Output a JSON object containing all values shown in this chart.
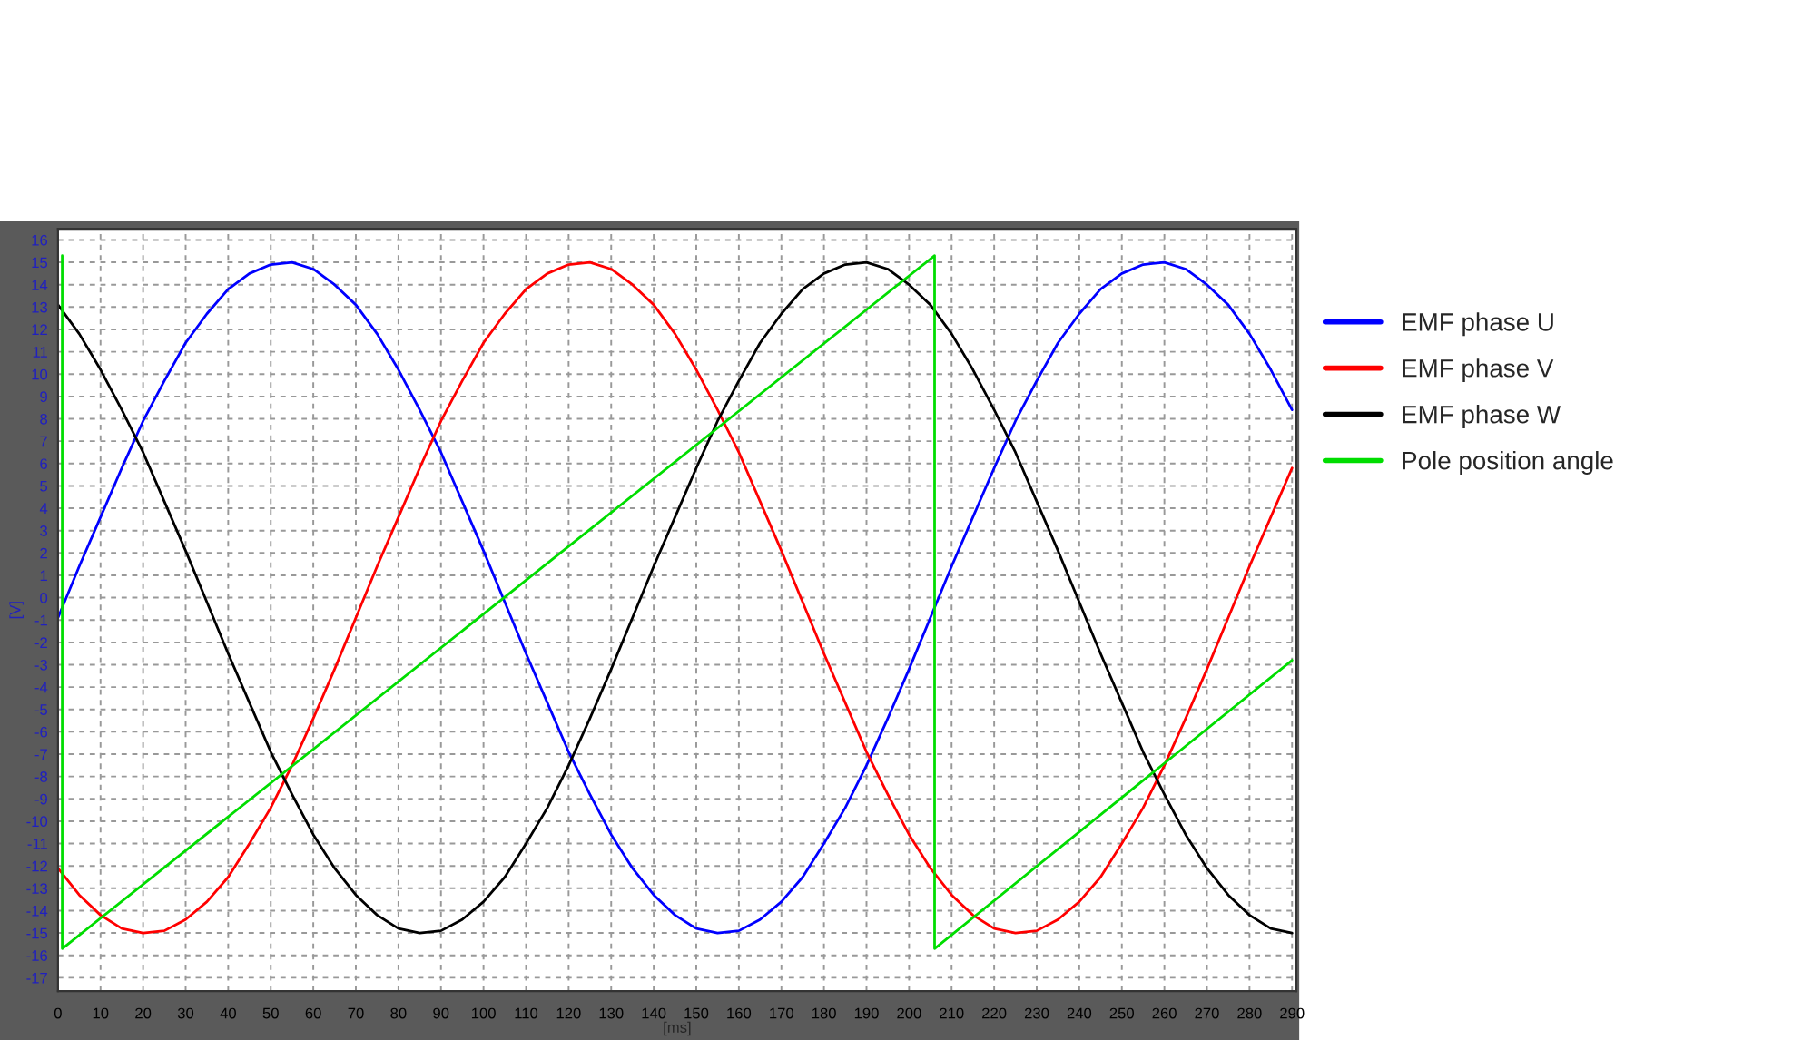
{
  "chart_data": {
    "type": "line",
    "xlabel": "[ms]",
    "ylabel": "[V]",
    "x": [
      0,
      5,
      10,
      15,
      20,
      25,
      30,
      35,
      40,
      45,
      50,
      55,
      60,
      65,
      70,
      75,
      80,
      85,
      90,
      95,
      100,
      105,
      110,
      115,
      120,
      125,
      130,
      135,
      140,
      145,
      150,
      155,
      160,
      165,
      170,
      175,
      180,
      185,
      190,
      195,
      200,
      205,
      210,
      215,
      220,
      225,
      230,
      235,
      240,
      245,
      250,
      255,
      260,
      265,
      270,
      275,
      280,
      285,
      290
    ],
    "series": [
      {
        "name": "EMF phase U",
        "color": "#0000ff",
        "values": [
          -0.9,
          1.4,
          3.6,
          5.8,
          7.9,
          9.7,
          11.4,
          12.7,
          13.8,
          14.5,
          14.9,
          15.0,
          14.7,
          14.0,
          13.1,
          11.8,
          10.2,
          8.4,
          6.5,
          4.3,
          2.1,
          -0.2,
          -2.5,
          -4.7,
          -6.9,
          -8.8,
          -10.6,
          -12.1,
          -13.3,
          -14.2,
          -14.8,
          -15.0,
          -14.9,
          -14.4,
          -13.6,
          -12.5,
          -11.0,
          -9.4,
          -7.5,
          -5.4,
          -3.2,
          -0.9,
          1.4,
          3.6,
          5.8,
          7.9,
          9.7,
          11.4,
          12.7,
          13.8,
          14.5,
          14.9,
          15.0,
          14.7,
          14.0,
          13.1,
          11.8,
          10.2,
          8.4
        ]
      },
      {
        "name": "EMF phase V",
        "color": "#ff0000",
        "values": [
          -12.1,
          -13.3,
          -14.2,
          -14.8,
          -15.0,
          -14.9,
          -14.4,
          -13.6,
          -12.5,
          -11.0,
          -9.4,
          -7.5,
          -5.4,
          -3.2,
          -0.9,
          1.4,
          3.6,
          5.8,
          7.9,
          9.7,
          11.4,
          12.7,
          13.8,
          14.5,
          14.9,
          15.0,
          14.7,
          14.0,
          13.1,
          11.8,
          10.2,
          8.4,
          6.5,
          4.3,
          2.1,
          -0.2,
          -2.5,
          -4.7,
          -6.9,
          -8.8,
          -10.6,
          -12.1,
          -13.3,
          -14.2,
          -14.8,
          -15.0,
          -14.9,
          -14.4,
          -13.6,
          -12.5,
          -11.0,
          -9.4,
          -7.5,
          -5.4,
          -3.2,
          -0.9,
          1.4,
          3.6,
          5.8
        ]
      },
      {
        "name": "EMF phase W",
        "color": "#000000",
        "values": [
          13.1,
          11.8,
          10.2,
          8.4,
          6.5,
          4.3,
          2.1,
          -0.2,
          -2.5,
          -4.7,
          -6.9,
          -8.8,
          -10.6,
          -12.1,
          -13.3,
          -14.2,
          -14.8,
          -15.0,
          -14.9,
          -14.4,
          -13.6,
          -12.5,
          -11.0,
          -9.4,
          -7.5,
          -5.4,
          -3.2,
          -0.9,
          1.4,
          3.6,
          5.8,
          7.9,
          9.7,
          11.4,
          12.7,
          13.8,
          14.5,
          14.9,
          15.0,
          14.7,
          14.0,
          13.1,
          11.8,
          10.2,
          8.4,
          6.5,
          4.3,
          2.1,
          -0.2,
          -2.5,
          -4.7,
          -6.9,
          -8.8,
          -10.6,
          -12.1,
          -13.3,
          -14.2,
          -14.8,
          -15.0
        ]
      },
      {
        "name": "Pole position angle",
        "color": "#00dd00",
        "x": [
          1,
          1,
          206,
          206,
          290
        ],
        "values": [
          15.3,
          -15.7,
          15.3,
          -15.7,
          -2.8
        ]
      }
    ],
    "xlim": [
      0,
      291
    ],
    "xticks": [
      0,
      10,
      20,
      30,
      40,
      50,
      60,
      70,
      80,
      90,
      100,
      110,
      120,
      130,
      140,
      150,
      160,
      170,
      180,
      190,
      200,
      210,
      220,
      230,
      240,
      250,
      260,
      270,
      280,
      290
    ],
    "ylim": [
      -17.6,
      16.5
    ],
    "yticks": [
      -17,
      -16,
      -15,
      -14,
      -13,
      -12,
      -11,
      -10,
      -9,
      -8,
      -7,
      -6,
      -5,
      -4,
      -3,
      -2,
      -1,
      0,
      1,
      2,
      3,
      4,
      5,
      6,
      7,
      8,
      9,
      10,
      11,
      12,
      13,
      14,
      15,
      16
    ],
    "grid": true,
    "legend": "right",
    "marker": "none",
    "line_style": "solid"
  }
}
